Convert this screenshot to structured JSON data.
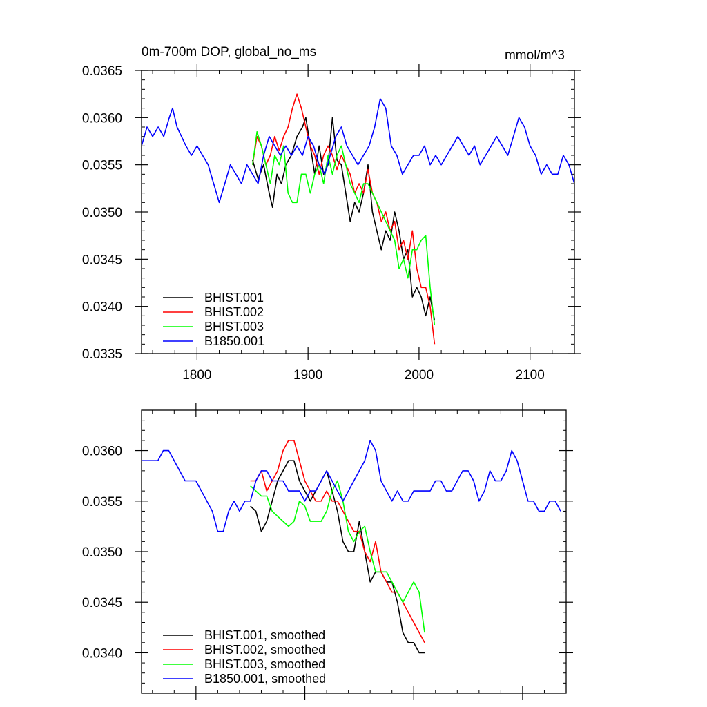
{
  "chart_data": [
    {
      "type": "line",
      "title": "0m-700m DOP, global_no_ms",
      "subtitle": "mmol/m^3",
      "xlabel": "",
      "ylabel": "",
      "xlim": [
        1750,
        2140
      ],
      "ylim": [
        0.0335,
        0.0365
      ],
      "xticks": [
        1800,
        1900,
        2000,
        2100
      ],
      "xtick_labels": [
        "1800",
        "1900",
        "2000",
        "2100"
      ],
      "yticks": [
        0.0335,
        0.034,
        0.0345,
        0.035,
        0.0355,
        0.036,
        0.0365
      ],
      "ytick_labels": [
        "0.0335",
        "0.0340",
        "0.0345",
        "0.0350",
        "0.0355",
        "0.0360",
        "0.0365"
      ],
      "grid": false,
      "legend_position": "bottom-left",
      "series": [
        {
          "name": "BHIST.001",
          "color": "#000000",
          "x": [
            1850,
            1855,
            1860,
            1865,
            1868,
            1872,
            1876,
            1880,
            1885,
            1890,
            1895,
            1898,
            1902,
            1906,
            1910,
            1914,
            1918,
            1922,
            1926,
            1930,
            1934,
            1938,
            1942,
            1946,
            1950,
            1954,
            1958,
            1962,
            1966,
            1970,
            1974,
            1978,
            1982,
            1986,
            1990,
            1994,
            1998,
            2002,
            2006,
            2010,
            2014
          ],
          "y": [
            0.03555,
            0.03535,
            0.0355,
            0.0352,
            0.03505,
            0.0354,
            0.0353,
            0.0355,
            0.0356,
            0.0358,
            0.0359,
            0.036,
            0.0357,
            0.0354,
            0.0357,
            0.0354,
            0.0355,
            0.036,
            0.03555,
            0.0355,
            0.0352,
            0.0349,
            0.0351,
            0.035,
            0.0352,
            0.0355,
            0.035,
            0.0348,
            0.0346,
            0.0348,
            0.0347,
            0.035,
            0.0348,
            0.0345,
            0.0346,
            0.0341,
            0.0342,
            0.0341,
            0.0339,
            0.0341,
            0.03385
          ]
        },
        {
          "name": "BHIST.002",
          "color": "#ff0000",
          "x": [
            1850,
            1854,
            1858,
            1862,
            1866,
            1870,
            1874,
            1878,
            1882,
            1886,
            1890,
            1894,
            1898,
            1902,
            1906,
            1910,
            1914,
            1918,
            1922,
            1926,
            1930,
            1934,
            1938,
            1942,
            1946,
            1950,
            1954,
            1958,
            1962,
            1966,
            1970,
            1974,
            1978,
            1982,
            1986,
            1990,
            1994,
            1998,
            2002,
            2006,
            2010,
            2014
          ],
          "y": [
            0.0355,
            0.0358,
            0.0357,
            0.0355,
            0.0356,
            0.0358,
            0.03565,
            0.0358,
            0.0359,
            0.0361,
            0.03625,
            0.0361,
            0.0359,
            0.0357,
            0.0356,
            0.0354,
            0.0356,
            0.0357,
            0.0356,
            0.03545,
            0.0356,
            0.0355,
            0.0354,
            0.0352,
            0.0353,
            0.0352,
            0.03545,
            0.0352,
            0.0351,
            0.0349,
            0.035,
            0.0348,
            0.0349,
            0.0346,
            0.0347,
            0.0345,
            0.0348,
            0.0344,
            0.0342,
            0.0342,
            0.034,
            0.0336
          ]
        },
        {
          "name": "BHIST.003",
          "color": "#00ff00",
          "x": [
            1850,
            1854,
            1858,
            1862,
            1866,
            1870,
            1874,
            1878,
            1882,
            1886,
            1890,
            1894,
            1898,
            1902,
            1906,
            1910,
            1914,
            1918,
            1922,
            1926,
            1930,
            1934,
            1938,
            1942,
            1946,
            1950,
            1954,
            1958,
            1962,
            1966,
            1970,
            1974,
            1978,
            1982,
            1986,
            1990,
            1994,
            1998,
            2002,
            2006,
            2010,
            2014
          ],
          "y": [
            0.0355,
            0.03585,
            0.0357,
            0.0355,
            0.0353,
            0.0356,
            0.0355,
            0.0357,
            0.0352,
            0.0351,
            0.0351,
            0.0354,
            0.0354,
            0.0352,
            0.0354,
            0.0355,
            0.0353,
            0.0356,
            0.0354,
            0.0356,
            0.0357,
            0.0355,
            0.0353,
            0.0352,
            0.0351,
            0.0353,
            0.0353,
            0.0352,
            0.0351,
            0.035,
            0.0349,
            0.0348,
            0.0347,
            0.0344,
            0.0345,
            0.0343,
            0.0346,
            0.0346,
            0.0347,
            0.03475,
            0.0342,
            0.0338
          ]
        },
        {
          "name": "B1850.001",
          "color": "#0000ff",
          "x": [
            1750,
            1755,
            1760,
            1765,
            1770,
            1775,
            1778,
            1782,
            1786,
            1790,
            1795,
            1800,
            1805,
            1810,
            1815,
            1820,
            1825,
            1830,
            1835,
            1840,
            1845,
            1850,
            1855,
            1860,
            1865,
            1870,
            1875,
            1880,
            1885,
            1890,
            1895,
            1900,
            1905,
            1910,
            1915,
            1920,
            1925,
            1930,
            1935,
            1940,
            1945,
            1950,
            1955,
            1960,
            1965,
            1970,
            1975,
            1980,
            1985,
            1990,
            1995,
            2000,
            2005,
            2010,
            2015,
            2020,
            2025,
            2030,
            2035,
            2040,
            2045,
            2050,
            2055,
            2060,
            2065,
            2070,
            2075,
            2080,
            2085,
            2090,
            2095,
            2100,
            2105,
            2110,
            2115,
            2120,
            2125,
            2130,
            2135,
            2140
          ],
          "y": [
            0.0357,
            0.0359,
            0.0358,
            0.0359,
            0.0358,
            0.036,
            0.0361,
            0.0359,
            0.0358,
            0.0357,
            0.0356,
            0.0357,
            0.0356,
            0.0355,
            0.0353,
            0.0351,
            0.0353,
            0.0355,
            0.0354,
            0.0353,
            0.0355,
            0.0354,
            0.0353,
            0.0356,
            0.0358,
            0.0357,
            0.0356,
            0.0357,
            0.0356,
            0.0357,
            0.0356,
            0.0358,
            0.0357,
            0.0355,
            0.0354,
            0.0356,
            0.0358,
            0.0359,
            0.0357,
            0.0356,
            0.0355,
            0.0356,
            0.0357,
            0.0359,
            0.0362,
            0.0361,
            0.0357,
            0.0356,
            0.0354,
            0.0355,
            0.0356,
            0.0356,
            0.0357,
            0.0355,
            0.0356,
            0.0355,
            0.0356,
            0.0357,
            0.0358,
            0.0357,
            0.0356,
            0.0357,
            0.0355,
            0.0356,
            0.0357,
            0.0358,
            0.0357,
            0.0356,
            0.0358,
            0.036,
            0.0359,
            0.0357,
            0.0356,
            0.0354,
            0.0355,
            0.0354,
            0.0354,
            0.0356,
            0.0355,
            0.0353
          ]
        }
      ]
    },
    {
      "type": "line",
      "title": "",
      "xlabel": "",
      "ylabel": "",
      "xlim": [
        1750,
        2140
      ],
      "ylim": [
        0.0336,
        0.0364
      ],
      "xticks": [
        1800,
        1900,
        2000,
        2100
      ],
      "yticks": [
        0.034,
        0.0345,
        0.035,
        0.0355,
        0.036
      ],
      "ytick_labels": [
        "0.0340",
        "0.0345",
        "0.0350",
        "0.0355",
        "0.0360"
      ],
      "grid": false,
      "legend_position": "bottom-left",
      "series": [
        {
          "name": "BHIST.001, smoothed",
          "color": "#000000",
          "x": [
            1850,
            1855,
            1860,
            1865,
            1870,
            1875,
            1880,
            1885,
            1890,
            1895,
            1900,
            1905,
            1910,
            1915,
            1920,
            1925,
            1930,
            1935,
            1940,
            1945,
            1950,
            1955,
            1960,
            1965,
            1970,
            1975,
            1980,
            1985,
            1990,
            1995,
            2000,
            2005,
            2010
          ],
          "y": [
            0.03545,
            0.0354,
            0.0352,
            0.0353,
            0.0355,
            0.0357,
            0.0358,
            0.0359,
            0.0359,
            0.0357,
            0.0356,
            0.0355,
            0.0356,
            0.0357,
            0.0358,
            0.0356,
            0.0354,
            0.0351,
            0.035,
            0.035,
            0.0353,
            0.035,
            0.0347,
            0.0348,
            0.0348,
            0.0347,
            0.0347,
            0.0345,
            0.0342,
            0.0341,
            0.0341,
            0.034,
            0.034
          ]
        },
        {
          "name": "BHIST.002, smoothed",
          "color": "#ff0000",
          "x": [
            1850,
            1855,
            1860,
            1865,
            1870,
            1875,
            1880,
            1885,
            1890,
            1895,
            1900,
            1905,
            1910,
            1915,
            1920,
            1925,
            1930,
            1935,
            1940,
            1945,
            1950,
            1955,
            1960,
            1965,
            1970,
            1975,
            1980,
            1985,
            1990,
            1995,
            2000,
            2005,
            2010
          ],
          "y": [
            0.0357,
            0.0357,
            0.0358,
            0.0356,
            0.0357,
            0.0358,
            0.036,
            0.0361,
            0.0361,
            0.0359,
            0.0357,
            0.0356,
            0.0355,
            0.0355,
            0.0356,
            0.0355,
            0.0355,
            0.0354,
            0.0353,
            0.0352,
            0.0352,
            0.035,
            0.0349,
            0.0351,
            0.0348,
            0.0347,
            0.0346,
            0.0346,
            0.0345,
            0.0344,
            0.0343,
            0.0342,
            0.0341
          ]
        },
        {
          "name": "BHIST.003, smoothed",
          "color": "#00ff00",
          "x": [
            1850,
            1855,
            1860,
            1865,
            1870,
            1875,
            1880,
            1885,
            1890,
            1895,
            1900,
            1905,
            1910,
            1915,
            1920,
            1925,
            1930,
            1935,
            1940,
            1945,
            1950,
            1955,
            1960,
            1965,
            1970,
            1975,
            1980,
            1985,
            1990,
            1995,
            2000,
            2005,
            2010
          ],
          "y": [
            0.03565,
            0.0356,
            0.03555,
            0.03555,
            0.0354,
            0.03535,
            0.0353,
            0.03525,
            0.0353,
            0.0355,
            0.03545,
            0.0353,
            0.0353,
            0.0353,
            0.0354,
            0.0356,
            0.0357,
            0.0355,
            0.0352,
            0.0351,
            0.0352,
            0.03525,
            0.035,
            0.0348,
            0.0348,
            0.0348,
            0.0347,
            0.0346,
            0.0345,
            0.0346,
            0.0347,
            0.0346,
            0.0342
          ]
        },
        {
          "name": "B1850.001, smoothed",
          "color": "#0000ff",
          "x": [
            1750,
            1755,
            1760,
            1765,
            1770,
            1775,
            1780,
            1785,
            1790,
            1795,
            1800,
            1805,
            1810,
            1815,
            1820,
            1825,
            1830,
            1835,
            1840,
            1845,
            1850,
            1855,
            1860,
            1865,
            1870,
            1875,
            1880,
            1885,
            1890,
            1895,
            1900,
            1905,
            1910,
            1915,
            1920,
            1925,
            1930,
            1935,
            1940,
            1945,
            1950,
            1955,
            1960,
            1965,
            1970,
            1975,
            1980,
            1985,
            1990,
            1995,
            2000,
            2005,
            2010,
            2015,
            2020,
            2025,
            2030,
            2035,
            2040,
            2045,
            2050,
            2055,
            2060,
            2065,
            2070,
            2075,
            2080,
            2085,
            2090,
            2095,
            2100,
            2105,
            2110,
            2115,
            2120,
            2125,
            2130,
            2135
          ],
          "y": [
            0.0359,
            0.0359,
            0.0359,
            0.0359,
            0.036,
            0.036,
            0.0359,
            0.0358,
            0.0357,
            0.0357,
            0.0357,
            0.0356,
            0.0355,
            0.0354,
            0.0352,
            0.0352,
            0.0354,
            0.0355,
            0.0354,
            0.0355,
            0.0355,
            0.0357,
            0.0358,
            0.0358,
            0.0357,
            0.0357,
            0.0357,
            0.0356,
            0.0356,
            0.0356,
            0.0355,
            0.0356,
            0.0356,
            0.0357,
            0.0358,
            0.0357,
            0.0356,
            0.0355,
            0.0356,
            0.0357,
            0.0358,
            0.0359,
            0.0361,
            0.036,
            0.0357,
            0.0356,
            0.0355,
            0.0356,
            0.0355,
            0.0355,
            0.0356,
            0.0356,
            0.0356,
            0.0356,
            0.0357,
            0.0357,
            0.0356,
            0.0356,
            0.0357,
            0.0358,
            0.0358,
            0.0357,
            0.0355,
            0.0356,
            0.0358,
            0.0357,
            0.0357,
            0.0358,
            0.036,
            0.0359,
            0.0357,
            0.0355,
            0.0355,
            0.0354,
            0.0354,
            0.0355,
            0.0355,
            0.0354
          ]
        }
      ]
    }
  ]
}
